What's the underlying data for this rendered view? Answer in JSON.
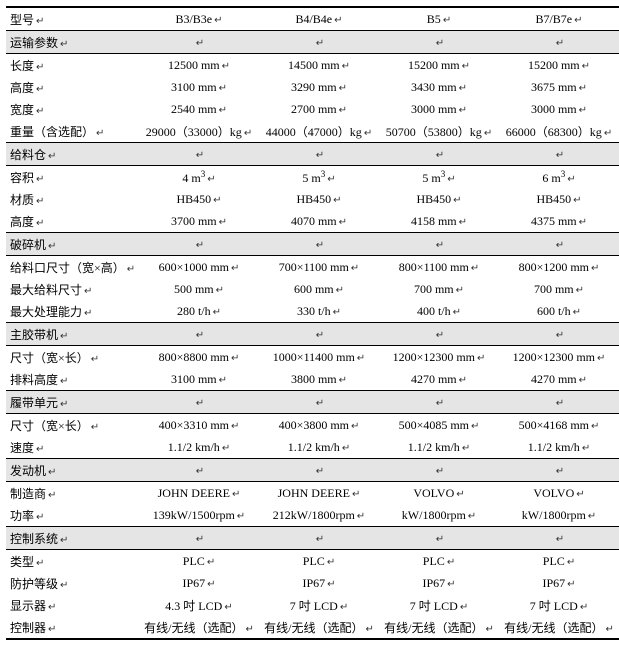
{
  "arrow": "↵",
  "header": {
    "label": "型号",
    "cols": [
      "B3/B3e",
      "B4/B4e",
      "B5",
      "B7/B7e"
    ]
  },
  "sections": [
    {
      "title": "运输参数",
      "rows": [
        {
          "label": "长度",
          "v": [
            "12500 mm",
            "14500 mm",
            "15200 mm",
            "15200 mm"
          ]
        },
        {
          "label": "高度",
          "v": [
            "3100 mm",
            "3290 mm",
            "3430 mm",
            "3675 mm"
          ]
        },
        {
          "label": "宽度",
          "v": [
            "2540 mm",
            "2700 mm",
            "3000 mm",
            "3000 mm"
          ]
        },
        {
          "label": "重量（含选配）",
          "v": [
            "29000（33000）kg",
            "44000（47000）kg",
            "50700（53800）kg",
            "66000（68300）kg"
          ]
        }
      ]
    },
    {
      "title": "给料仓",
      "rows": [
        {
          "label": "容积",
          "v": [
            "4 m³",
            "5 m³",
            "5 m³",
            "6 m³"
          ],
          "sup": true
        },
        {
          "label": "材质",
          "v": [
            "HB450",
            "HB450",
            "HB450",
            "HB450"
          ]
        },
        {
          "label": "高度",
          "v": [
            "3700 mm",
            "4070 mm",
            "4158 mm",
            "4375 mm"
          ]
        }
      ]
    },
    {
      "title": "破碎机",
      "rows": [
        {
          "label": "给料口尺寸（宽×高）",
          "v": [
            "600×1000 mm",
            "700×1100 mm",
            "800×1100 mm",
            "800×1200 mm"
          ]
        },
        {
          "label": "最大给料尺寸",
          "v": [
            "500 mm",
            "600 mm",
            "700 mm",
            "700 mm"
          ]
        },
        {
          "label": "最大处理能力",
          "v": [
            "280 t/h",
            "330 t/h",
            "400 t/h",
            "600 t/h"
          ]
        }
      ]
    },
    {
      "title": "主胶带机",
      "rows": [
        {
          "label": "尺寸（宽×长）",
          "v": [
            "800×8800 mm",
            "1000×11400 mm",
            "1200×12300 mm",
            "1200×12300 mm"
          ]
        },
        {
          "label": "排料高度",
          "v": [
            "3100 mm",
            "3800 mm",
            "4270 mm",
            "4270 mm"
          ]
        }
      ]
    },
    {
      "title": "履带单元",
      "rows": [
        {
          "label": "尺寸（宽×长）",
          "v": [
            "400×3310 mm",
            "400×3800 mm",
            "500×4085 mm",
            "500×4168 mm"
          ]
        },
        {
          "label": "速度",
          "v": [
            "1.1/2 km/h",
            "1.1/2 km/h",
            "1.1/2 km/h",
            "1.1/2 km/h"
          ]
        }
      ]
    },
    {
      "title": "发动机",
      "rows": [
        {
          "label": "制造商",
          "v": [
            "JOHN DEERE",
            "JOHN DEERE",
            "VOLVO",
            "VOLVO"
          ]
        },
        {
          "label": "功率",
          "v": [
            "139kW/1500rpm",
            "212kW/1800rpm",
            "kW/1800rpm",
            "kW/1800rpm"
          ]
        }
      ]
    },
    {
      "title": "控制系统",
      "rows": [
        {
          "label": "类型",
          "v": [
            "PLC",
            "PLC",
            "PLC",
            "PLC"
          ]
        },
        {
          "label": "防护等级",
          "v": [
            "IP67",
            "IP67",
            "IP67",
            "IP67"
          ]
        },
        {
          "label": "显示器",
          "v": [
            "4.3 吋 LCD",
            "7 吋 LCD",
            "7 吋 LCD",
            "7 吋 LCD"
          ]
        },
        {
          "label": "控制器",
          "v": [
            "有线/无线（选配）",
            "有线/无线（选配）",
            "有线/无线（选配）",
            "有线/无线（选配）"
          ]
        }
      ]
    }
  ]
}
